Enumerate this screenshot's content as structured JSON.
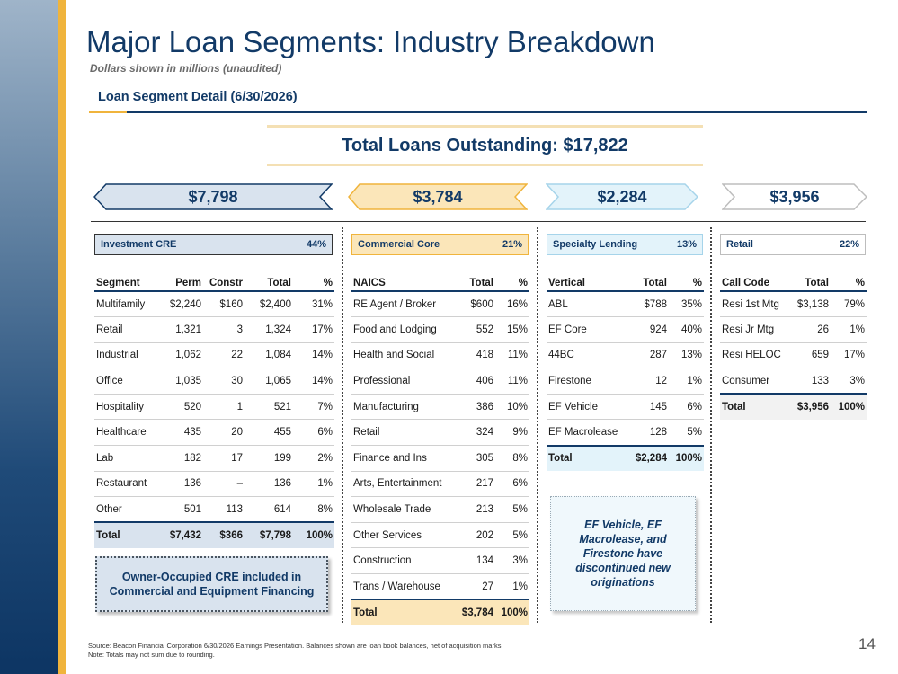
{
  "title": "Major Loan Segments: Industry Breakdown",
  "subtitle": "Dollars shown in millions (unaudited)",
  "section_title": "Loan Segment Detail (6/30/2026)",
  "total_loans": "Total Loans Outstanding: $17,822",
  "chevrons": [
    "$7,798",
    "$3,784",
    "$2,284",
    "$3,956"
  ],
  "colors": {
    "navy": "#123a67",
    "gold": "#f0b43c",
    "cre_fill": "#d9e3ee",
    "core_fill": "#fbe6b9",
    "spec_fill": "#e3f3fa",
    "retail_fill": "#ffffff"
  },
  "cre": {
    "header": "Investment CRE",
    "pct": "44%",
    "columns": [
      "Segment",
      "Perm",
      "Constr",
      "Total",
      "%"
    ],
    "rows": [
      [
        "Multifamily",
        "$2,240",
        "$160",
        "$2,400",
        "31%"
      ],
      [
        "Retail",
        "1,321",
        "3",
        "1,324",
        "17%"
      ],
      [
        "Industrial",
        "1,062",
        "22",
        "1,084",
        "14%"
      ],
      [
        "Office",
        "1,035",
        "30",
        "1,065",
        "14%"
      ],
      [
        "Hospitality",
        "520",
        "1",
        "521",
        "7%"
      ],
      [
        "Healthcare",
        "435",
        "20",
        "455",
        "6%"
      ],
      [
        "Lab",
        "182",
        "17",
        "199",
        "2%"
      ],
      [
        "Restaurant",
        "136",
        "–",
        "136",
        "1%"
      ],
      [
        "Other",
        "501",
        "113",
        "614",
        "8%"
      ]
    ],
    "total": [
      "Total",
      "$7,432",
      "$366",
      "$7,798",
      "100%"
    ],
    "note": "Owner-Occupied CRE included in Commercial and Equipment Financing"
  },
  "core": {
    "header": "Commercial Core",
    "pct": "21%",
    "columns": [
      "NAICS",
      "Total",
      "%"
    ],
    "rows": [
      [
        "RE Agent / Broker",
        "$600",
        "16%"
      ],
      [
        "Food and Lodging",
        "552",
        "15%"
      ],
      [
        "Health and Social",
        "418",
        "11%"
      ],
      [
        "Professional",
        "406",
        "11%"
      ],
      [
        "Manufacturing",
        "386",
        "10%"
      ],
      [
        "Retail",
        "324",
        "9%"
      ],
      [
        "Finance and Ins",
        "305",
        "8%"
      ],
      [
        "Arts, Entertainment",
        "217",
        "6%"
      ],
      [
        "Wholesale Trade",
        "213",
        "5%"
      ],
      [
        "Other Services",
        "202",
        "5%"
      ],
      [
        "Construction",
        "134",
        "3%"
      ],
      [
        "Trans / Warehouse",
        "27",
        "1%"
      ]
    ],
    "total": [
      "Total",
      "$3,784",
      "100%"
    ]
  },
  "specialty": {
    "header": "Specialty Lending",
    "pct": "13%",
    "columns": [
      "Vertical",
      "Total",
      "%"
    ],
    "rows": [
      [
        "ABL",
        "$788",
        "35%"
      ],
      [
        "EF Core",
        "924",
        "40%"
      ],
      [
        "44BC",
        "287",
        "13%"
      ],
      [
        "Firestone",
        "12",
        "1%"
      ],
      [
        "EF Vehicle",
        "145",
        "6%"
      ],
      [
        "EF Macrolease",
        "128",
        "5%"
      ]
    ],
    "total": [
      "Total",
      "$2,284",
      "100%"
    ],
    "note": "EF Vehicle, EF Macrolease, and Firestone have discontinued new originations"
  },
  "retail": {
    "header": "Retail",
    "pct": "22%",
    "columns": [
      "Call Code",
      "Total",
      "%"
    ],
    "rows": [
      [
        "Resi 1st Mtg",
        "$3,138",
        "79%"
      ],
      [
        "Resi Jr Mtg",
        "26",
        "1%"
      ],
      [
        "Resi HELOC",
        "659",
        "17%"
      ],
      [
        "Consumer",
        "133",
        "3%"
      ]
    ],
    "total": [
      "Total",
      "$3,956",
      "100%"
    ]
  },
  "footer": {
    "line1": "Source: Beacon Financial Corporation 6/30/2026 Earnings Presentation. Balances shown are loan book balances, net of acquisition marks.",
    "line2": "Note: Totals may not sum due to rounding."
  },
  "page_number": "14"
}
